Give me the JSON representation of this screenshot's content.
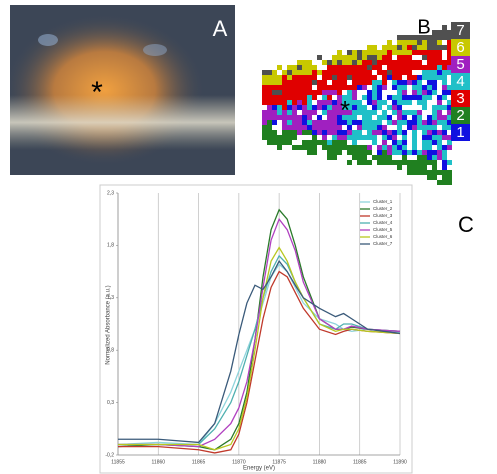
{
  "panels": {
    "a_label": "A",
    "a_marker": "*",
    "b_label": "B",
    "b_marker": "*",
    "b_legend": [
      {
        "label": "7",
        "color": "#505050"
      },
      {
        "label": "6",
        "color": "#c8c800"
      },
      {
        "label": "5",
        "color": "#a020c0"
      },
      {
        "label": "4",
        "color": "#20c0c8"
      },
      {
        "label": "3",
        "color": "#e00000"
      },
      {
        "label": "2",
        "color": "#208020"
      },
      {
        "label": "1",
        "color": "#1010e0"
      }
    ],
    "c_label": "C"
  },
  "chart_data": {
    "type": "line",
    "x_label": "Energy (eV)",
    "y_label": "Normalized Absorbance (a.u.)",
    "x": [
      11855,
      11860,
      11865,
      11867,
      11869,
      11870,
      11871,
      11872,
      11873,
      11874,
      11875,
      11876,
      11877,
      11878,
      11880,
      11882,
      11883,
      11884,
      11886,
      11890
    ],
    "xlim": [
      11855,
      11890
    ],
    "xticks": [
      11855,
      11860,
      11865,
      11870,
      11875,
      11880,
      11885,
      11890
    ],
    "ylim": [
      -0.2,
      2.3
    ],
    "yticks": [
      {
        "value": -0.2,
        "label": "-0,2"
      },
      {
        "value": 0.3,
        "label": "0,3"
      },
      {
        "value": 0.8,
        "label": "0,8"
      },
      {
        "value": 1.3,
        "label": "1,3"
      },
      {
        "value": 1.8,
        "label": "1,8"
      },
      {
        "value": 2.3,
        "label": "2,3"
      }
    ],
    "grid": true,
    "legend": "top-right",
    "series": [
      {
        "name": "Cluster_1",
        "color": "#8fd4dc",
        "values": [
          -0.1,
          -0.08,
          -0.1,
          0.1,
          0.4,
          0.6,
          0.8,
          1.0,
          1.25,
          1.5,
          1.62,
          1.55,
          1.4,
          1.25,
          1.1,
          1.05,
          1.0,
          0.98,
          1.0,
          0.97
        ]
      },
      {
        "name": "Cluster_2",
        "color": "#2a7a2a",
        "values": [
          -0.12,
          -0.1,
          -0.12,
          -0.15,
          -0.05,
          0.1,
          0.4,
          0.9,
          1.5,
          1.95,
          2.14,
          2.05,
          1.8,
          1.5,
          1.1,
          1.0,
          1.0,
          1.02,
          1.0,
          0.98
        ]
      },
      {
        "name": "Cluster_3",
        "color": "#c0392b",
        "values": [
          -0.12,
          -0.12,
          -0.15,
          -0.18,
          -0.15,
          0.0,
          0.3,
          0.7,
          1.1,
          1.4,
          1.55,
          1.5,
          1.35,
          1.2,
          1.0,
          0.95,
          0.98,
          1.0,
          0.98,
          0.96
        ]
      },
      {
        "name": "Cluster_4",
        "color": "#4fb0b0",
        "values": [
          -0.1,
          -0.1,
          -0.1,
          0.05,
          0.3,
          0.5,
          0.75,
          1.0,
          1.3,
          1.55,
          1.7,
          1.62,
          1.45,
          1.3,
          1.05,
          1.0,
          1.05,
          1.05,
          1.0,
          0.98
        ]
      },
      {
        "name": "Cluster_5",
        "color": "#b040c0",
        "values": [
          -0.1,
          -0.1,
          -0.12,
          -0.05,
          0.1,
          0.25,
          0.5,
          0.9,
          1.4,
          1.85,
          2.05,
          1.95,
          1.75,
          1.45,
          1.1,
          1.0,
          1.0,
          1.03,
          1.0,
          0.98
        ]
      },
      {
        "name": "Cluster_6",
        "color": "#b8c820",
        "values": [
          -0.1,
          -0.1,
          -0.1,
          -0.15,
          -0.1,
          0.05,
          0.35,
          0.8,
          1.3,
          1.65,
          1.78,
          1.65,
          1.45,
          1.3,
          1.05,
          0.98,
          1.0,
          1.0,
          0.98,
          0.96
        ]
      },
      {
        "name": "Cluster_7",
        "color": "#3a5a7a",
        "values": [
          -0.05,
          -0.05,
          -0.08,
          0.1,
          0.6,
          0.95,
          1.25,
          1.42,
          1.38,
          1.5,
          1.65,
          1.55,
          1.42,
          1.3,
          1.2,
          1.12,
          1.15,
          1.1,
          1.0,
          0.96
        ]
      }
    ]
  }
}
